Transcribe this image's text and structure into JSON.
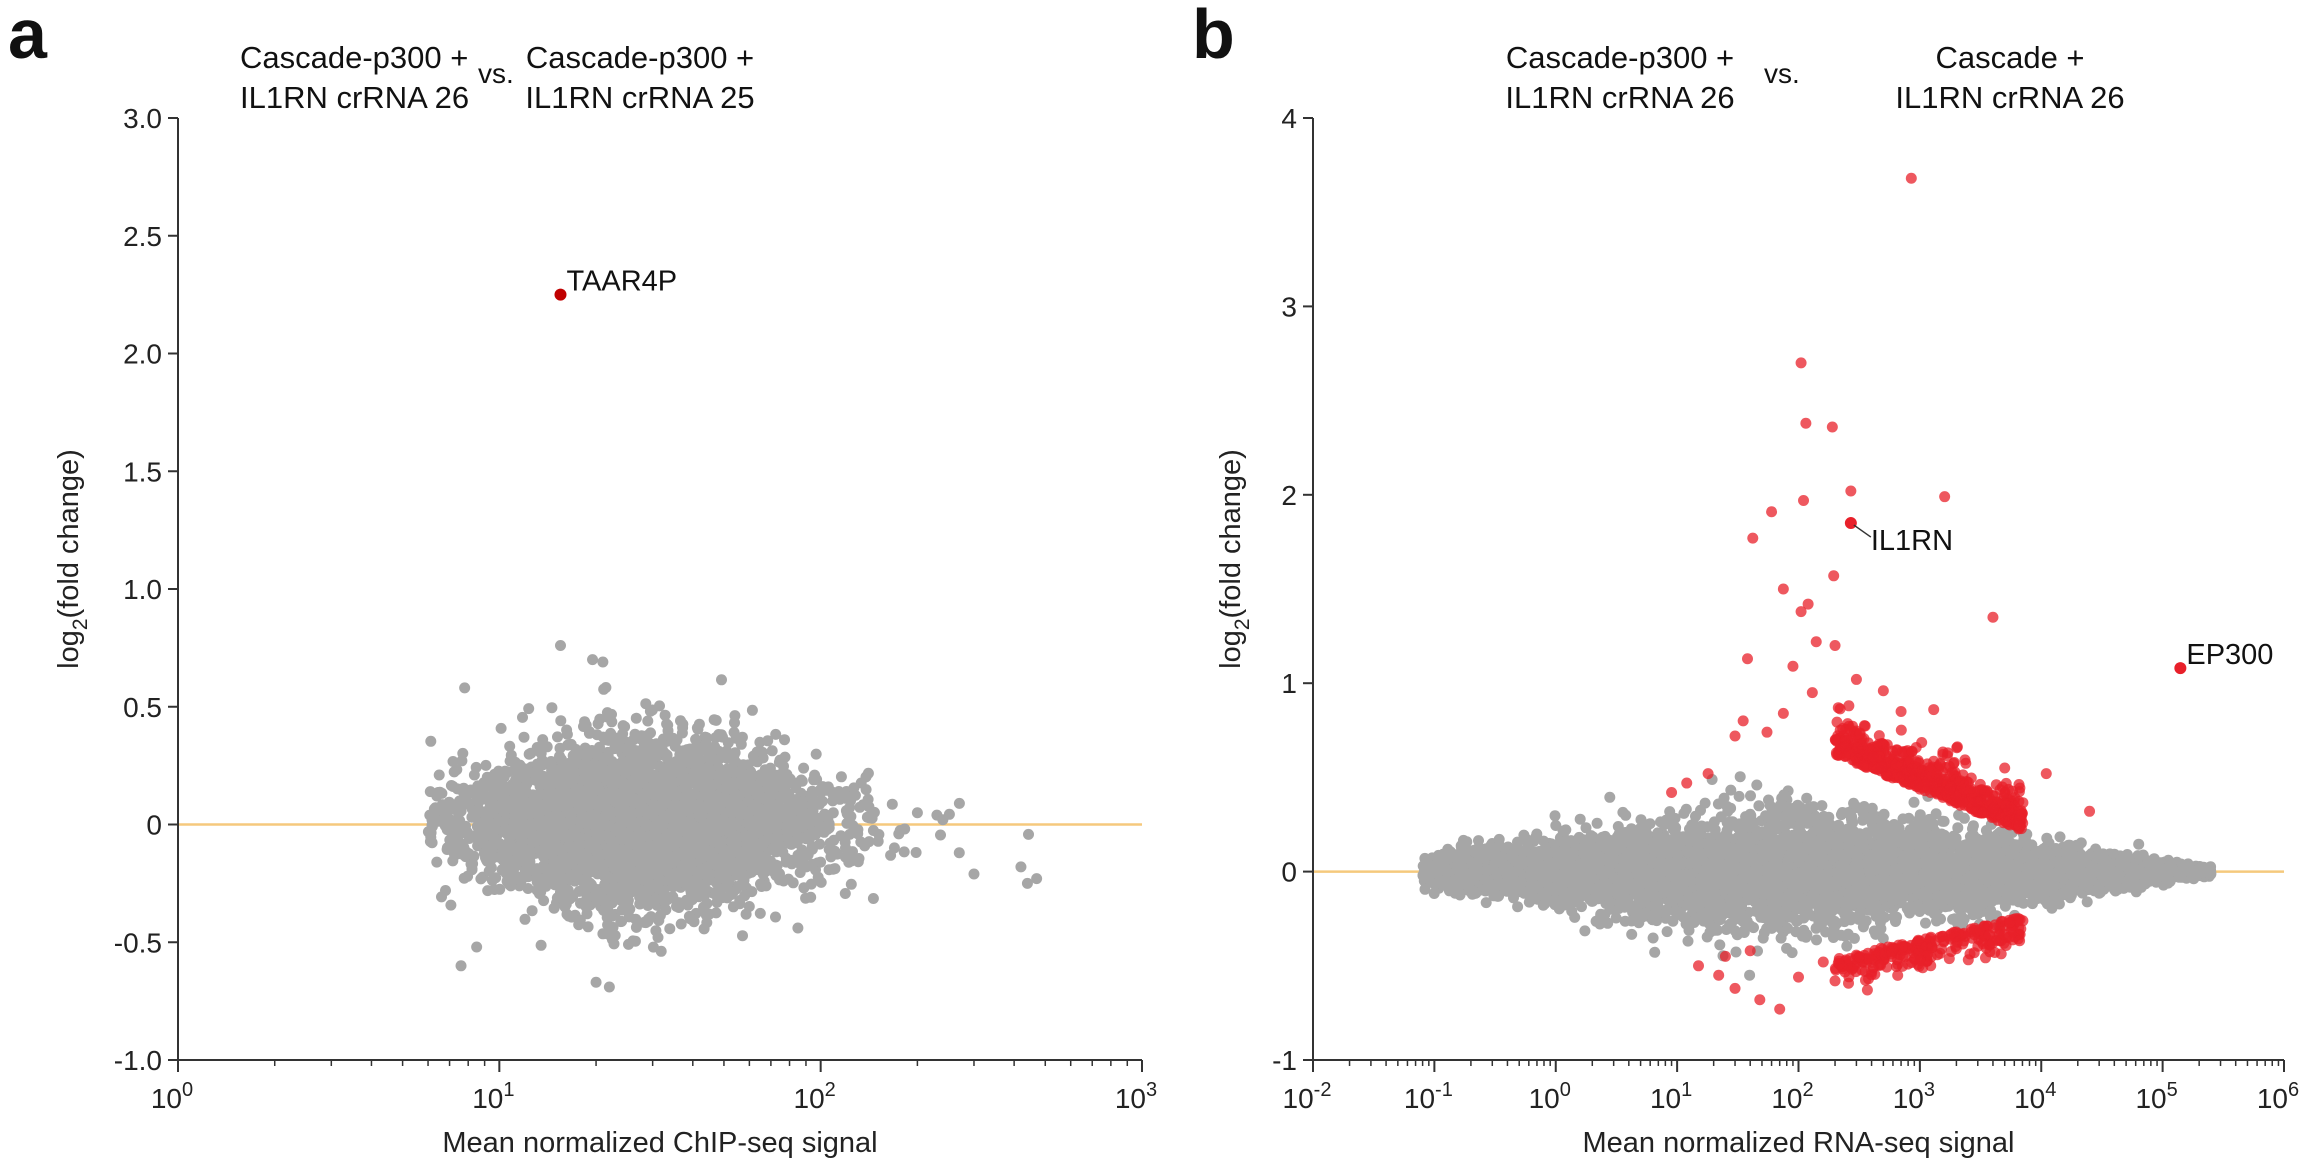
{
  "chart_data": [
    {
      "type": "scatter",
      "panel_label": "a",
      "title_left": [
        "Cascade-p300 +",
        "IL1RN crRNA 26"
      ],
      "title_vs": "vs.",
      "title_right": [
        "Cascade-p300 +",
        "IL1RN crRNA 25"
      ],
      "xlabel": "Mean normalized ChIP-seq signal",
      "ylabel": "log2(fold change)",
      "xscale": "log",
      "xlim": [
        1,
        1000
      ],
      "ylim": [
        -1.0,
        3.0
      ],
      "xticks": [
        {
          "value": 1,
          "base": "10",
          "exp": "0"
        },
        {
          "value": 10,
          "base": "10",
          "exp": "1"
        },
        {
          "value": 100,
          "base": "10",
          "exp": "2"
        },
        {
          "value": 1000,
          "base": "10",
          "exp": "3"
        }
      ],
      "yticks": [
        {
          "value": -1.0,
          "label": "-1.0"
        },
        {
          "value": -0.5,
          "label": "-0.5"
        },
        {
          "value": 0,
          "label": "0"
        },
        {
          "value": 0.5,
          "label": "0.5"
        },
        {
          "value": 1.0,
          "label": "1.0"
        },
        {
          "value": 1.5,
          "label": "1.5"
        },
        {
          "value": 2.0,
          "label": "2.0"
        },
        {
          "value": 2.5,
          "label": "2.5"
        },
        {
          "value": 3.0,
          "label": "3.0"
        }
      ],
      "reference_line_y": 0,
      "cloud": {
        "xmin": 6,
        "xmax": 500,
        "center": 28,
        "color": "#a6a6a6"
      },
      "gray_outliers": [
        {
          "x": 7.8,
          "y": 0.58
        },
        {
          "x": 7.6,
          "y": -0.6
        },
        {
          "x": 15.5,
          "y": 0.76
        },
        {
          "x": 19.5,
          "y": 0.7
        },
        {
          "x": 21,
          "y": 0.69
        },
        {
          "x": 6.5,
          "y": 0.21
        },
        {
          "x": 6.8,
          "y": -0.28
        },
        {
          "x": 8.5,
          "y": -0.52
        },
        {
          "x": 20,
          "y": -0.67
        },
        {
          "x": 22,
          "y": -0.69
        },
        {
          "x": 300,
          "y": -0.21
        },
        {
          "x": 420,
          "y": -0.18
        },
        {
          "x": 470,
          "y": -0.23
        },
        {
          "x": 440,
          "y": -0.25
        },
        {
          "x": 270,
          "y": -0.12
        },
        {
          "x": 230,
          "y": 0.04
        },
        {
          "x": 200,
          "y": 0.05
        },
        {
          "x": 240,
          "y": 0.02
        }
      ],
      "highlighted": [
        {
          "label": "TAAR4P",
          "x": 15.5,
          "y": 2.25,
          "color": "#c00000"
        }
      ]
    },
    {
      "type": "scatter",
      "panel_label": "b",
      "title_left": [
        "Cascade-p300 +",
        "IL1RN crRNA 26"
      ],
      "title_vs": "vs.",
      "title_right": [
        "Cascade +",
        "IL1RN crRNA 26"
      ],
      "xlabel": "Mean normalized RNA-seq signal",
      "ylabel": "log2(fold change)",
      "xscale": "log",
      "xlim": [
        0.01,
        1000000
      ],
      "ylim": [
        -1,
        4
      ],
      "xticks": [
        {
          "value": 0.01,
          "base": "10",
          "exp": "-2"
        },
        {
          "value": 0.1,
          "base": "10",
          "exp": "-1"
        },
        {
          "value": 1,
          "base": "10",
          "exp": "0"
        },
        {
          "value": 10,
          "base": "10",
          "exp": "1"
        },
        {
          "value": 100,
          "base": "10",
          "exp": "2"
        },
        {
          "value": 1000,
          "base": "10",
          "exp": "3"
        },
        {
          "value": 10000,
          "base": "10",
          "exp": "4"
        },
        {
          "value": 100000,
          "base": "10",
          "exp": "5"
        },
        {
          "value": 1000000,
          "base": "10",
          "exp": "6"
        }
      ],
      "yticks": [
        {
          "value": -1,
          "label": "-1"
        },
        {
          "value": 0,
          "label": "0"
        },
        {
          "value": 1,
          "label": "1"
        },
        {
          "value": 2,
          "label": "2"
        },
        {
          "value": 3,
          "label": "3"
        },
        {
          "value": 4,
          "label": "4"
        }
      ],
      "reference_line_y": 0,
      "cloud": {
        "xmin": 0.08,
        "xmax": 250000,
        "center": 60,
        "color": "#a6a6a6"
      },
      "significant_color": "#e8202a",
      "red_outliers": [
        {
          "x": 850,
          "y": 3.68
        },
        {
          "x": 105,
          "y": 2.7
        },
        {
          "x": 115,
          "y": 2.38
        },
        {
          "x": 190,
          "y": 2.36
        },
        {
          "x": 270,
          "y": 2.02
        },
        {
          "x": 1600,
          "y": 1.99
        },
        {
          "x": 110,
          "y": 1.97
        },
        {
          "x": 60,
          "y": 1.91
        },
        {
          "x": 42,
          "y": 1.77
        },
        {
          "x": 195,
          "y": 1.57
        },
        {
          "x": 75,
          "y": 1.5
        },
        {
          "x": 4000,
          "y": 1.35
        },
        {
          "x": 120,
          "y": 1.42
        },
        {
          "x": 105,
          "y": 1.38
        },
        {
          "x": 200,
          "y": 1.2
        },
        {
          "x": 140,
          "y": 1.22
        },
        {
          "x": 38,
          "y": 1.13
        },
        {
          "x": 90,
          "y": 1.09
        },
        {
          "x": 300,
          "y": 1.02
        },
        {
          "x": 130,
          "y": 0.95
        },
        {
          "x": 500,
          "y": 0.96
        },
        {
          "x": 260,
          "y": 0.88
        },
        {
          "x": 700,
          "y": 0.85
        },
        {
          "x": 35,
          "y": 0.8
        },
        {
          "x": 1300,
          "y": 0.86
        },
        {
          "x": 75,
          "y": 0.84
        },
        {
          "x": 30,
          "y": 0.72
        },
        {
          "x": 55,
          "y": 0.74
        },
        {
          "x": 1700,
          "y": 0.63
        },
        {
          "x": 5000,
          "y": 0.55
        },
        {
          "x": 11000,
          "y": 0.52
        },
        {
          "x": 25000,
          "y": 0.32
        },
        {
          "x": 12,
          "y": 0.47
        },
        {
          "x": 9,
          "y": 0.42
        },
        {
          "x": 18,
          "y": 0.52
        },
        {
          "x": 25,
          "y": -0.45
        },
        {
          "x": 15,
          "y": -0.5
        },
        {
          "x": 30,
          "y": -0.62
        },
        {
          "x": 48,
          "y": -0.68
        },
        {
          "x": 70,
          "y": -0.73
        },
        {
          "x": 22,
          "y": -0.55
        },
        {
          "x": 100,
          "y": -0.56
        },
        {
          "x": 200,
          "y": -0.58
        },
        {
          "x": 160,
          "y": -0.48
        },
        {
          "x": 40,
          "y": -0.42
        }
      ],
      "highlighted": [
        {
          "label": "IL1RN",
          "x": 270,
          "y": 1.85,
          "color": "#e8202a"
        },
        {
          "label": "EP300",
          "x": 140000,
          "y": 1.08,
          "color": "#e8202a"
        }
      ]
    }
  ]
}
